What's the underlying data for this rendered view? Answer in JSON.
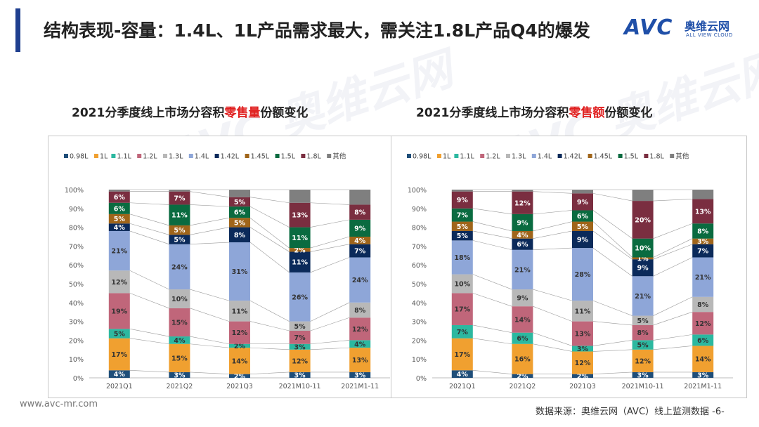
{
  "header": {
    "title": "结构表现-容量：1.4L、1L产品需求最大，需关注1.8L产品Q4的爆发",
    "logo_text": "AVC",
    "logo_cn": "奥维云网",
    "logo_en": "ALL VIEW CLOUD"
  },
  "footer": {
    "url": "www.avc-mr.com",
    "source": "数据来源：奥维云网（AVC）线上监测数据 -6-"
  },
  "watermark": "AVC 奥维云网",
  "colors": [
    "#1f4e79",
    "#f0a030",
    "#2cb8a0",
    "#c0667a",
    "#b8b8b8",
    "#8ea6d8",
    "#0b2a5a",
    "#a0651a",
    "#0a6b40",
    "#7a2e40",
    "#7f7f7f"
  ],
  "chart_data": [
    {
      "type": "bar",
      "stacked": true,
      "percent": true,
      "title_prefix": "2021分季度线上市场分容积",
      "title_highlight": "零售量",
      "title_suffix": "份额变化",
      "categories": [
        "2021Q1",
        "2021Q2",
        "2021Q3",
        "2021M10-11",
        "2021M1-11"
      ],
      "yticks": [
        "0%",
        "10%",
        "20%",
        "30%",
        "40%",
        "50%",
        "60%",
        "70%",
        "80%",
        "90%",
        "100%"
      ],
      "legend": [
        "0.98L",
        "1L",
        "1.1L",
        "1.2L",
        "1.3L",
        "1.4L",
        "1.42L",
        "1.45L",
        "1.5L",
        "1.8L",
        "其他"
      ],
      "series": [
        {
          "name": "0.98L",
          "values": [
            4,
            3,
            2,
            3,
            3
          ],
          "labels": [
            "4%",
            "3%",
            "2%",
            "3%",
            "3%"
          ]
        },
        {
          "name": "1L",
          "values": [
            17,
            15,
            14,
            12,
            13
          ],
          "labels": [
            "17%",
            "15%",
            "14%",
            "12%",
            "13%"
          ]
        },
        {
          "name": "1.1L",
          "values": [
            5,
            4,
            2,
            3,
            4
          ],
          "labels": [
            "5%",
            "4%",
            "2%",
            "3%",
            "4%"
          ]
        },
        {
          "name": "1.2L",
          "values": [
            19,
            15,
            12,
            7,
            12
          ],
          "labels": [
            "19%",
            "15%",
            "12%",
            "7%",
            "12%"
          ]
        },
        {
          "name": "1.3L",
          "values": [
            12,
            10,
            11,
            5,
            8
          ],
          "labels": [
            "12%",
            "10%",
            "11%",
            "5%",
            "8%"
          ]
        },
        {
          "name": "1.4L",
          "values": [
            21,
            24,
            31,
            26,
            24
          ],
          "labels": [
            "21%",
            "24%",
            "31%",
            "26%",
            "24%"
          ]
        },
        {
          "name": "1.42L",
          "values": [
            4,
            5,
            8,
            11,
            7
          ],
          "labels": [
            "4%",
            "5%",
            "8%",
            "11%",
            "7%"
          ]
        },
        {
          "name": "1.45L",
          "values": [
            5,
            5,
            5,
            2,
            4
          ],
          "labels": [
            "5%",
            "5%",
            "5%",
            "2%",
            "4%"
          ]
        },
        {
          "name": "1.5L",
          "values": [
            6,
            11,
            6,
            11,
            9
          ],
          "labels": [
            "6%",
            "11%",
            "6%",
            "11%",
            "9%"
          ]
        },
        {
          "name": "1.8L",
          "values": [
            6,
            7,
            5,
            13,
            8
          ],
          "labels": [
            "6%",
            "7%",
            "5%",
            "13%",
            "8%"
          ]
        },
        {
          "name": "其他",
          "values": [
            1,
            1,
            4,
            7,
            8
          ],
          "labels": [
            "",
            "",
            "",
            "",
            ""
          ]
        }
      ]
    },
    {
      "type": "bar",
      "stacked": true,
      "percent": true,
      "title_prefix": "2021分季度线上市场分容积",
      "title_highlight": "零售额",
      "title_suffix": "份额变化",
      "categories": [
        "2021Q1",
        "2021Q2",
        "2021Q3",
        "2021M10-11",
        "2021M1-11"
      ],
      "yticks": [
        "0%",
        "10%",
        "20%",
        "30%",
        "40%",
        "50%",
        "60%",
        "70%",
        "80%",
        "90%",
        "100%"
      ],
      "legend": [
        "0.98L",
        "1L",
        "1.1L",
        "1.2L",
        "1.3L",
        "1.4L",
        "1.42L",
        "1.45L",
        "1.5L",
        "1.8L",
        "其他"
      ],
      "series": [
        {
          "name": "0.98L",
          "values": [
            4,
            2,
            2,
            3,
            3
          ],
          "labels": [
            "4%",
            "2%",
            "2%",
            "3%",
            "3%"
          ]
        },
        {
          "name": "1L",
          "values": [
            17,
            16,
            12,
            12,
            14
          ],
          "labels": [
            "17%",
            "16%",
            "12%",
            "12%",
            "14%"
          ]
        },
        {
          "name": "1.1L",
          "values": [
            7,
            6,
            3,
            5,
            6
          ],
          "labels": [
            "7%",
            "6%",
            "3%",
            "5%",
            "6%"
          ]
        },
        {
          "name": "1.2L",
          "values": [
            17,
            14,
            13,
            8,
            12
          ],
          "labels": [
            "17%",
            "14%",
            "13%",
            "8%",
            "12%"
          ]
        },
        {
          "name": "1.3L",
          "values": [
            10,
            9,
            11,
            5,
            8
          ],
          "labels": [
            "10%",
            "9%",
            "11%",
            "5%",
            "8%"
          ]
        },
        {
          "name": "1.4L",
          "values": [
            18,
            21,
            28,
            21,
            21
          ],
          "labels": [
            "18%",
            "21%",
            "28%",
            "21%",
            "21%"
          ]
        },
        {
          "name": "1.42L",
          "values": [
            5,
            6,
            9,
            9,
            7
          ],
          "labels": [
            "5%",
            "6%",
            "9%",
            "9%",
            "7%"
          ]
        },
        {
          "name": "1.45L",
          "values": [
            5,
            4,
            5,
            1,
            3
          ],
          "labels": [
            "5%",
            "4%",
            "5%",
            "1%",
            "3%"
          ]
        },
        {
          "name": "1.5L",
          "values": [
            7,
            9,
            6,
            10,
            8
          ],
          "labels": [
            "7%",
            "9%",
            "6%",
            "10%",
            "8%"
          ]
        },
        {
          "name": "1.8L",
          "values": [
            9,
            12,
            9,
            20,
            13
          ],
          "labels": [
            "9%",
            "12%",
            "9%",
            "20%",
            "13%"
          ]
        },
        {
          "name": "其他",
          "values": [
            1,
            1,
            2,
            6,
            5
          ],
          "labels": [
            "",
            "",
            "",
            "",
            ""
          ]
        }
      ]
    }
  ]
}
